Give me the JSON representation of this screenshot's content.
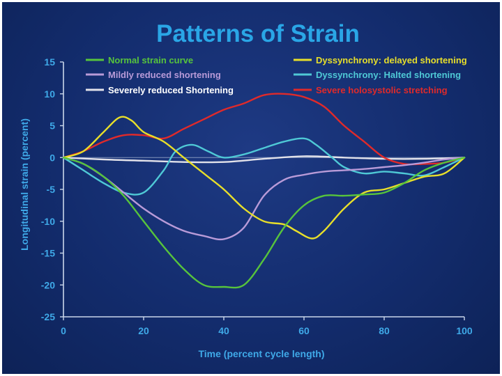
{
  "chart_data": {
    "type": "line",
    "title": "Patterns of Strain",
    "xlabel": "Time (percent cycle length)",
    "ylabel": "Longitudinal strain (percent)",
    "xlim": [
      0,
      100
    ],
    "ylim": [
      -25,
      15
    ],
    "xticks": [
      "0",
      "20",
      "40",
      "60",
      "80",
      "100"
    ],
    "yticks": [
      "15",
      "10",
      "5",
      "0",
      "-5",
      "-10",
      "-15",
      "-20",
      "-25"
    ],
    "grid": false,
    "legend_position": "top",
    "series": [
      {
        "name": "Normal strain curve",
        "color": "#57c43c",
        "x": [
          0,
          5,
          10,
          15,
          20,
          25,
          30,
          35,
          40,
          45,
          50,
          55,
          60,
          65,
          70,
          75,
          80,
          85,
          90,
          95,
          100
        ],
        "y": [
          0,
          -1,
          -3,
          -6,
          -10,
          -14,
          -17.5,
          -20,
          -20.3,
          -20,
          -16,
          -11,
          -7.5,
          -6,
          -6,
          -5.8,
          -5.5,
          -4,
          -2,
          -0.8,
          0
        ]
      },
      {
        "name": "Mildly reduced shortening",
        "color": "#b99bd8",
        "x": [
          0,
          5,
          10,
          15,
          20,
          25,
          30,
          35,
          40,
          45,
          50,
          55,
          60,
          65,
          70,
          75,
          80,
          85,
          90,
          95,
          100
        ],
        "y": [
          0,
          -1,
          -3,
          -5.5,
          -8,
          -10,
          -11.5,
          -12.3,
          -12.8,
          -11,
          -6,
          -3.5,
          -2.7,
          -2.2,
          -2,
          -1.8,
          -1.5,
          -1.2,
          -0.8,
          -0.3,
          0
        ]
      },
      {
        "name": "Severely reduced Shortening",
        "color": "#e2e2ea",
        "x": [
          0,
          10,
          20,
          30,
          40,
          50,
          60,
          70,
          80,
          90,
          100
        ],
        "y": [
          0,
          -0.3,
          -0.5,
          -0.7,
          -0.7,
          -0.2,
          0.2,
          0,
          -0.2,
          -0.2,
          0
        ]
      },
      {
        "name": "Dyssynchrony: delayed shortening",
        "color": "#e8df2a",
        "x": [
          0,
          5,
          10,
          14,
          17,
          20,
          25,
          30,
          35,
          40,
          45,
          50,
          55,
          58,
          62,
          65,
          70,
          75,
          80,
          85,
          90,
          95,
          100
        ],
        "y": [
          0,
          1,
          4,
          6.3,
          5.8,
          4,
          2.5,
          0,
          -2.5,
          -5,
          -8,
          -10,
          -10.5,
          -11.5,
          -12.7,
          -11.5,
          -8,
          -5.5,
          -5,
          -4,
          -3,
          -2.5,
          0
        ]
      },
      {
        "name": "Dyssynchrony: Halted shortening",
        "color": "#4fc9d6",
        "x": [
          0,
          5,
          10,
          15,
          20,
          25,
          28,
          32,
          36,
          40,
          45,
          50,
          55,
          60,
          63,
          67,
          70,
          75,
          80,
          85,
          90,
          95,
          100
        ],
        "y": [
          0,
          -2,
          -4,
          -5.5,
          -5.5,
          -2,
          1,
          2,
          1,
          0,
          0.5,
          1.5,
          2.5,
          3,
          2,
          0,
          -1.5,
          -2.5,
          -2.2,
          -2.5,
          -2.8,
          -1.5,
          0
        ]
      },
      {
        "name": "Severe holosystolic stretching",
        "color": "#e02a2a",
        "x": [
          0,
          5,
          10,
          15,
          20,
          25,
          30,
          35,
          40,
          45,
          50,
          55,
          60,
          65,
          70,
          75,
          80,
          85,
          90,
          95,
          100
        ],
        "y": [
          0,
          1,
          2.5,
          3.5,
          3.5,
          3,
          4.5,
          6,
          7.5,
          8.5,
          9.8,
          10,
          9.5,
          8,
          5,
          2.5,
          0,
          -1,
          -1,
          -0.8,
          0
        ]
      }
    ]
  }
}
